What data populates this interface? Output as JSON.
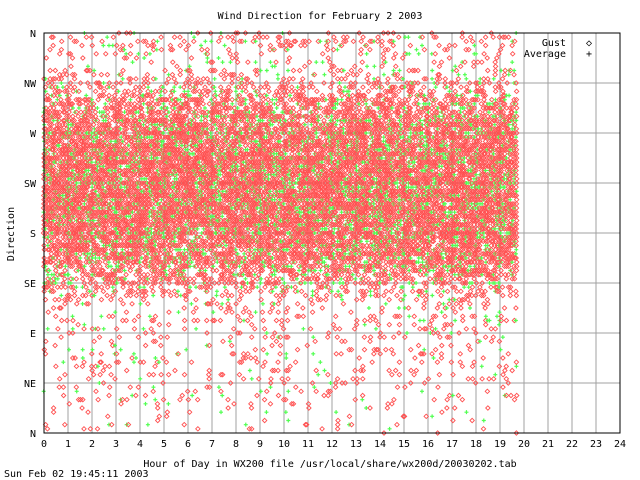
{
  "chart_data": {
    "type": "scatter",
    "title": "Wind Direction for February  2 2003",
    "xlabel": "Hour of Day in WX200 file /usr/local/share/wx200d/20030202.tab",
    "ylabel": "Direction",
    "footer": "Sun Feb 02 19:45:11 2003",
    "xlim": [
      0,
      24
    ],
    "ylim": [
      0,
      360
    ],
    "x_ticks": [
      "0",
      "1",
      "2",
      "3",
      "4",
      "5",
      "6",
      "7",
      "8",
      "9",
      "10",
      "11",
      "12",
      "13",
      "14",
      "15",
      "16",
      "17",
      "18",
      "19",
      "20",
      "21",
      "22",
      "23",
      "24"
    ],
    "y_ticks": [
      {
        "label": "N",
        "value": 0
      },
      {
        "label": "NE",
        "value": 45
      },
      {
        "label": "E",
        "value": 90
      },
      {
        "label": "SE",
        "value": 135
      },
      {
        "label": "S",
        "value": 180
      },
      {
        "label": "SW",
        "value": 225
      },
      {
        "label": "W",
        "value": 270
      },
      {
        "label": "NW",
        "value": 315
      },
      {
        "label": "N",
        "value": 360
      }
    ],
    "grid": true,
    "legend_position": "top-right",
    "data_x_range": [
      0,
      19.75
    ],
    "series": [
      {
        "name": "Gust",
        "marker": "◇",
        "color": "#ff5050"
      },
      {
        "name": "Average",
        "marker": "+",
        "color": "#50ff50"
      }
    ],
    "density_profile": [
      [
        0,
        3
      ],
      [
        10,
        6
      ],
      [
        20,
        6
      ],
      [
        30,
        8
      ],
      [
        40,
        5
      ],
      [
        50,
        7
      ],
      [
        60,
        9
      ],
      [
        70,
        10
      ],
      [
        80,
        9
      ],
      [
        90,
        10
      ],
      [
        100,
        12
      ],
      [
        110,
        12
      ],
      [
        120,
        20
      ],
      [
        130,
        30
      ],
      [
        135,
        45
      ],
      [
        140,
        55
      ],
      [
        145,
        60
      ],
      [
        150,
        70
      ],
      [
        155,
        75
      ],
      [
        160,
        80
      ],
      [
        165,
        82
      ],
      [
        170,
        88
      ],
      [
        175,
        92
      ],
      [
        180,
        93
      ],
      [
        185,
        95
      ],
      [
        190,
        96
      ],
      [
        195,
        97
      ],
      [
        200,
        98
      ],
      [
        205,
        99
      ],
      [
        210,
        100
      ],
      [
        215,
        100
      ],
      [
        220,
        100
      ],
      [
        225,
        100
      ],
      [
        230,
        100
      ],
      [
        235,
        98
      ],
      [
        240,
        98
      ],
      [
        245,
        97
      ],
      [
        250,
        96
      ],
      [
        255,
        95
      ],
      [
        260,
        93
      ],
      [
        265,
        90
      ],
      [
        270,
        88
      ],
      [
        275,
        83
      ],
      [
        280,
        78
      ],
      [
        285,
        75
      ],
      [
        290,
        70
      ],
      [
        295,
        62
      ],
      [
        300,
        55
      ],
      [
        305,
        45
      ],
      [
        310,
        38
      ],
      [
        315,
        30
      ],
      [
        320,
        22
      ],
      [
        325,
        16
      ],
      [
        330,
        12
      ],
      [
        335,
        10
      ],
      [
        340,
        12
      ],
      [
        345,
        14
      ],
      [
        350,
        18
      ],
      [
        355,
        16
      ],
      [
        360,
        10
      ]
    ]
  }
}
